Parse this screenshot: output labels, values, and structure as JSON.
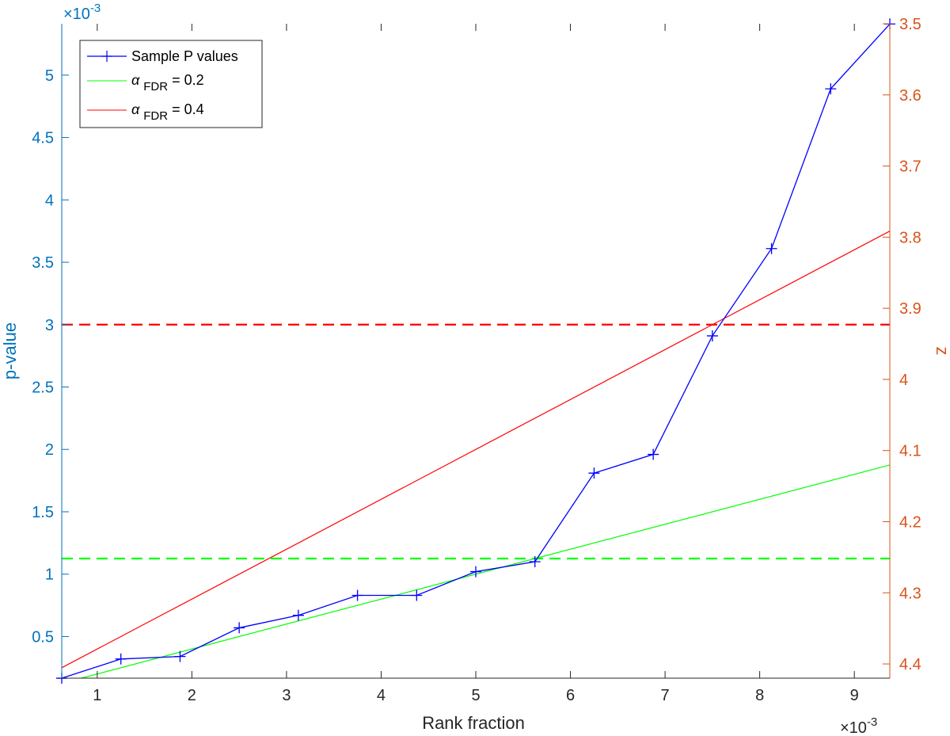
{
  "chart_data": {
    "type": "line",
    "xlabel": "Rank fraction",
    "ylabel": "p-value",
    "ylabel_right": "z",
    "x_exponent_label": "×10",
    "x_exponent": "-3",
    "y_exponent_label": "×10",
    "y_exponent": "-3",
    "xlim": [
      0.625,
      9.375
    ],
    "ylim": [
      0.1663,
      5.4117
    ],
    "y_right_lim": [
      3.5,
      4.42
    ],
    "y_right_reversed": true,
    "x_ticks": [
      "1",
      "2",
      "3",
      "4",
      "5",
      "6",
      "7",
      "8",
      "9"
    ],
    "x_tick_values": [
      1,
      2,
      3,
      4,
      5,
      6,
      7,
      8,
      9
    ],
    "y_ticks": [
      "0.5",
      "1",
      "1.5",
      "2",
      "2.5",
      "3",
      "3.5",
      "4",
      "4.5",
      "5"
    ],
    "y_tick_values": [
      0.5,
      1,
      1.5,
      2,
      2.5,
      3,
      3.5,
      4,
      4.5,
      5
    ],
    "y_right_ticks": [
      "3.5",
      "3.6",
      "3.7",
      "3.8",
      "3.9",
      "4",
      "4.1",
      "4.2",
      "4.3",
      "4.4"
    ],
    "y_right_tick_values": [
      3.5,
      3.6,
      3.7,
      3.8,
      3.9,
      4.0,
      4.1,
      4.2,
      4.3,
      4.4
    ],
    "grid": false,
    "legend_position": "top-left",
    "series": [
      {
        "name": "Sample P values",
        "color": "#0000FF",
        "marker": "plus",
        "x": [
          0.625,
          1.25,
          1.875,
          2.5,
          3.125,
          3.75,
          4.375,
          5.0,
          5.625,
          6.25,
          6.875,
          7.5,
          8.125,
          8.75,
          9.375
        ],
        "values": [
          0.166,
          0.32,
          0.34,
          0.57,
          0.67,
          0.83,
          0.83,
          1.02,
          1.1,
          1.81,
          1.96,
          2.91,
          3.61,
          4.89,
          5.41
        ]
      },
      {
        "name": "α FDR = 0.2",
        "legend_symbol": "α",
        "legend_subscript": "FDR",
        "legend_suffix": " = 0.2",
        "color": "#00FF00",
        "x": [
          0.625,
          9.375
        ],
        "values": [
          0.125,
          1.875
        ]
      },
      {
        "name": "α FDR = 0.4",
        "legend_symbol": "α",
        "legend_subscript": "FDR",
        "legend_suffix": " = 0.4",
        "color": "#FF0000",
        "x": [
          0.625,
          9.375
        ],
        "values": [
          0.25,
          3.75
        ]
      }
    ],
    "thresholds": [
      {
        "color": "#00FF00",
        "style": "dashed",
        "y": 1.125
      },
      {
        "color": "#FF0000",
        "style": "dashed",
        "y": 3.0
      }
    ],
    "colors": {
      "left_axis": "#0072BD",
      "right_axis": "#D95319",
      "x_axis": "#262626"
    }
  }
}
